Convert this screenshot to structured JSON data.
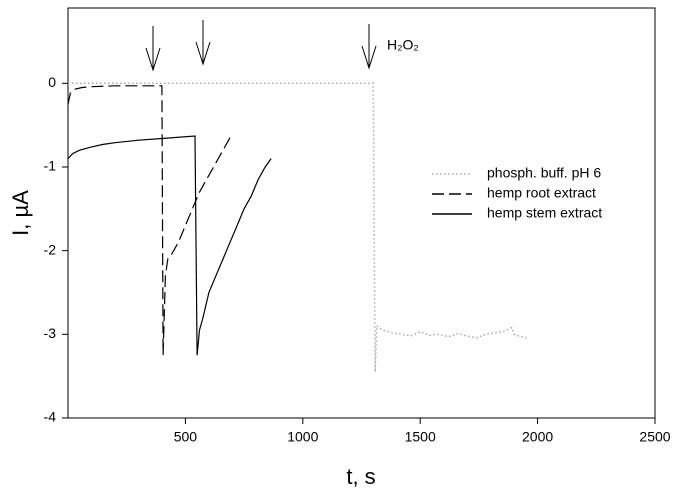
{
  "chart_data": {
    "type": "line",
    "xlabel": "t, s",
    "ylabel": "I, µA",
    "annotation": "H₂O₂",
    "xlim": [
      0,
      2500
    ],
    "xticks": [
      500,
      1000,
      1500,
      2000,
      2500
    ],
    "ylim": [
      -4,
      0.9
    ],
    "yticks": [
      -4,
      -3,
      -2,
      -1,
      0
    ],
    "series": [
      {
        "name": "phosph. buff. pH 6",
        "color": "#aaaaaa",
        "dash": "dotted",
        "x": [
          0,
          1300,
          1308,
          1315,
          1340,
          1380,
          1420,
          1460,
          1500,
          1540,
          1580,
          1620,
          1660,
          1700,
          1740,
          1780,
          1820,
          1860,
          1890,
          1900,
          1920,
          1960
        ],
        "values": [
          0,
          0,
          -3.45,
          -2.9,
          -2.95,
          -2.98,
          -3.0,
          -3.02,
          -2.97,
          -3.01,
          -3.0,
          -3.03,
          -2.99,
          -3.02,
          -3.04,
          -3.0,
          -2.98,
          -2.96,
          -2.92,
          -3.0,
          -3.02,
          -3.05
        ]
      },
      {
        "name": "hemp root extract",
        "color": "#000000",
        "dash": "dashed",
        "x": [
          0,
          10,
          30,
          60,
          100,
          200,
          300,
          400,
          405,
          415,
          425,
          440,
          470,
          500,
          530,
          560,
          590,
          620,
          650,
          670,
          690
        ],
        "values": [
          -0.25,
          -0.12,
          -0.07,
          -0.05,
          -0.04,
          -0.03,
          -0.03,
          -0.03,
          -3.25,
          -2.3,
          -2.1,
          -2.05,
          -1.9,
          -1.7,
          -1.5,
          -1.3,
          -1.15,
          -1.0,
          -0.85,
          -0.75,
          -0.65
        ]
      },
      {
        "name": "hemp stem extract",
        "color": "#000000",
        "dash": "solid",
        "x": [
          0,
          20,
          50,
          100,
          150,
          200,
          300,
          400,
          541,
          550,
          560,
          575,
          600,
          630,
          660,
          690,
          720,
          750,
          780,
          810,
          840,
          865
        ],
        "values": [
          -0.9,
          -0.84,
          -0.8,
          -0.76,
          -0.73,
          -0.71,
          -0.68,
          -0.66,
          -0.63,
          -3.25,
          -2.95,
          -2.8,
          -2.5,
          -2.3,
          -2.1,
          -1.9,
          -1.7,
          -1.5,
          -1.35,
          -1.15,
          -1.0,
          -0.9
        ]
      }
    ]
  }
}
